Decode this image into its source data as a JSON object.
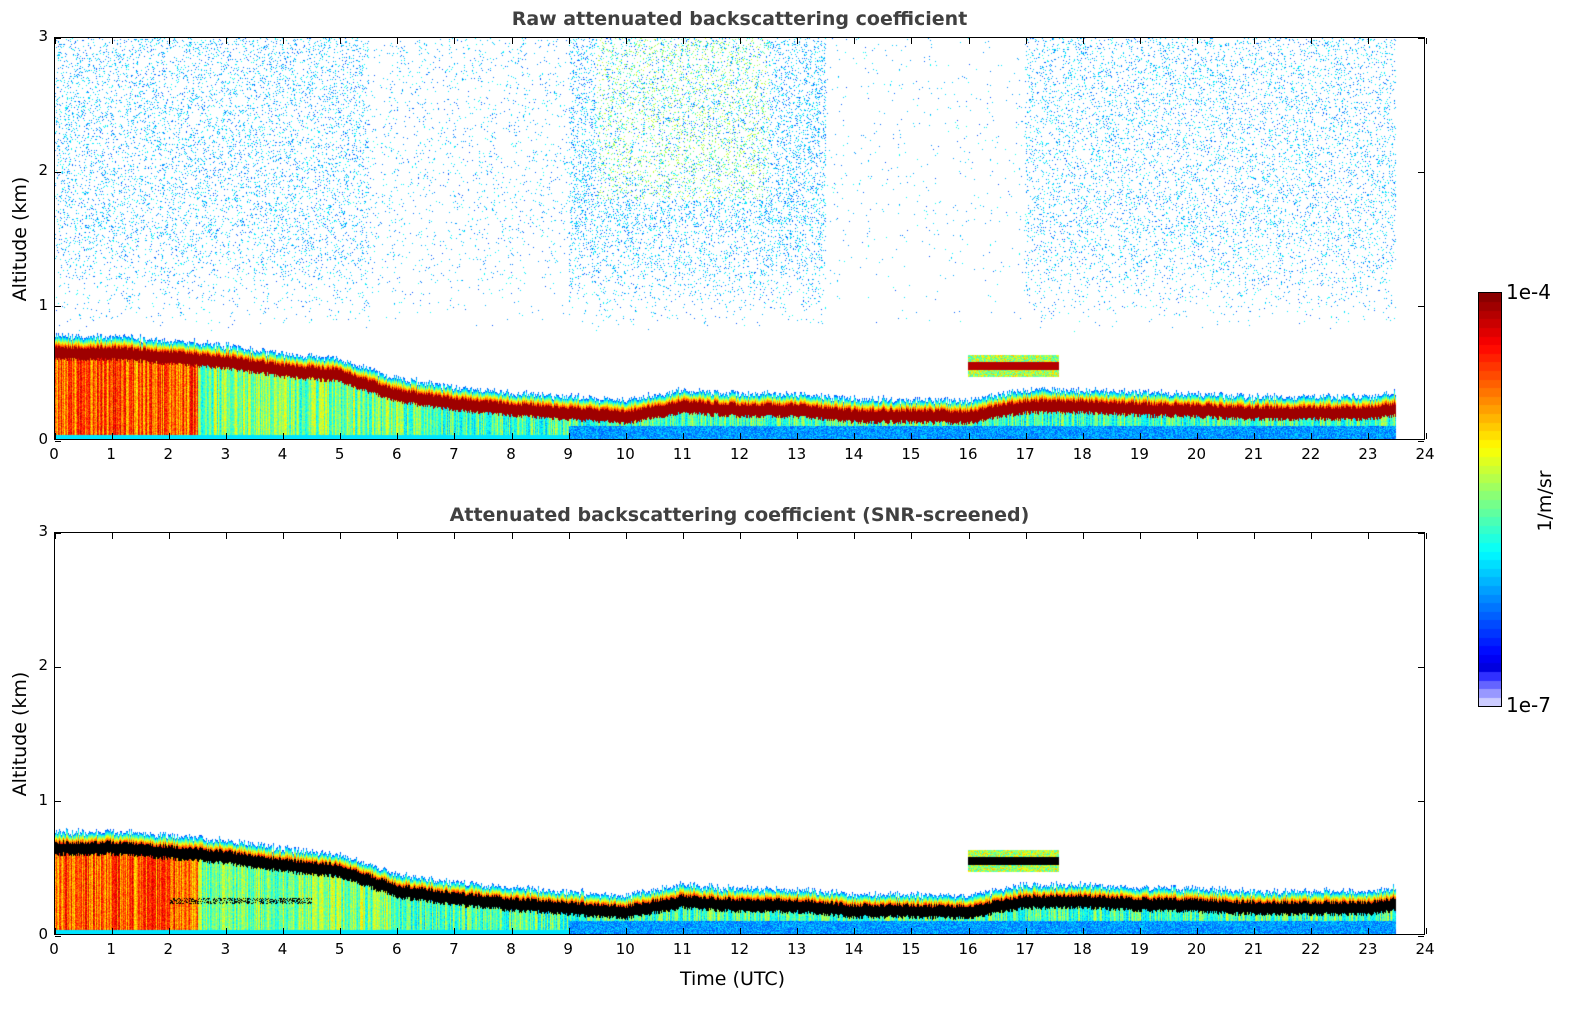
{
  "chart_data": {
    "type": "heatmap",
    "panels": [
      {
        "id": "raw",
        "title": "Raw attenuated backscattering coefficient",
        "ylabel": "Altitude (km)",
        "xlabel": "",
        "screened": false
      },
      {
        "id": "snr",
        "title": "Attenuated backscattering coefficient (SNR-screened)",
        "ylabel": "Altitude (km)",
        "xlabel": "Time (UTC)",
        "screened": true
      }
    ],
    "xlim": [
      0,
      24
    ],
    "ylim": [
      0,
      3
    ],
    "xticks": [
      "0",
      "1",
      "2",
      "3",
      "4",
      "5",
      "6",
      "7",
      "8",
      "9",
      "10",
      "11",
      "12",
      "13",
      "14",
      "15",
      "16",
      "17",
      "18",
      "19",
      "20",
      "21",
      "22",
      "23",
      "24"
    ],
    "yticks": [
      "0",
      "1",
      "2",
      "3"
    ],
    "data_end_hour": 23.5,
    "layer_peak_km": {
      "time": [
        0,
        1,
        2,
        3,
        4,
        5,
        6,
        7,
        8,
        9,
        10,
        11,
        12,
        13,
        14,
        15,
        16,
        17,
        18,
        19,
        20,
        21,
        22,
        23,
        23.5
      ],
      "altitude": [
        0.65,
        0.65,
        0.62,
        0.58,
        0.52,
        0.48,
        0.33,
        0.27,
        0.23,
        0.2,
        0.17,
        0.25,
        0.22,
        0.22,
        0.18,
        0.18,
        0.17,
        0.25,
        0.25,
        0.23,
        0.22,
        0.2,
        0.2,
        0.2,
        0.23
      ]
    },
    "elevated_layer": {
      "time_start": 16,
      "time_end": 17.6,
      "altitude_km": 0.55
    },
    "colorbar": {
      "label": "1/m/sr",
      "min_label": "1e-7",
      "max_label": "1e-4",
      "min": 1e-07,
      "max": 0.0001,
      "scale": "log",
      "colormap": "jet"
    }
  }
}
